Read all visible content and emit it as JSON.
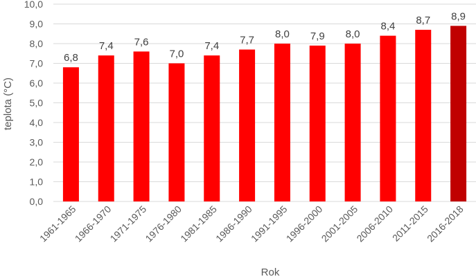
{
  "chart_data": {
    "type": "bar",
    "title": "",
    "xlabel": "Rok",
    "ylabel": "teplota (°C)",
    "ylim": [
      0,
      10
    ],
    "yticks": [
      "0,0",
      "1,0",
      "2,0",
      "3,0",
      "4,0",
      "5,0",
      "6,0",
      "7,0",
      "8,0",
      "9,0",
      "10,0"
    ],
    "grid": true,
    "categories": [
      "1961-1965",
      "1966-1970",
      "1971-1975",
      "1976-1980",
      "1981-1985",
      "1986-1990",
      "1991-1995",
      "1996-2000",
      "2001-2005",
      "2006-2010",
      "2011-2015",
      "2016-2018"
    ],
    "values": [
      6.8,
      7.4,
      7.6,
      7.0,
      7.4,
      7.7,
      8.0,
      7.9,
      8.0,
      8.4,
      8.7,
      8.9
    ],
    "value_labels": [
      "6,8",
      "7,4",
      "7,6",
      "7,0",
      "7,4",
      "7,7",
      "8,0",
      "7,9",
      "8,0",
      "8,4",
      "8,7",
      "8,9"
    ],
    "colors": {
      "bar": "#ff0000",
      "bar_highlight": "#c00000",
      "highlight_index": 11
    }
  }
}
